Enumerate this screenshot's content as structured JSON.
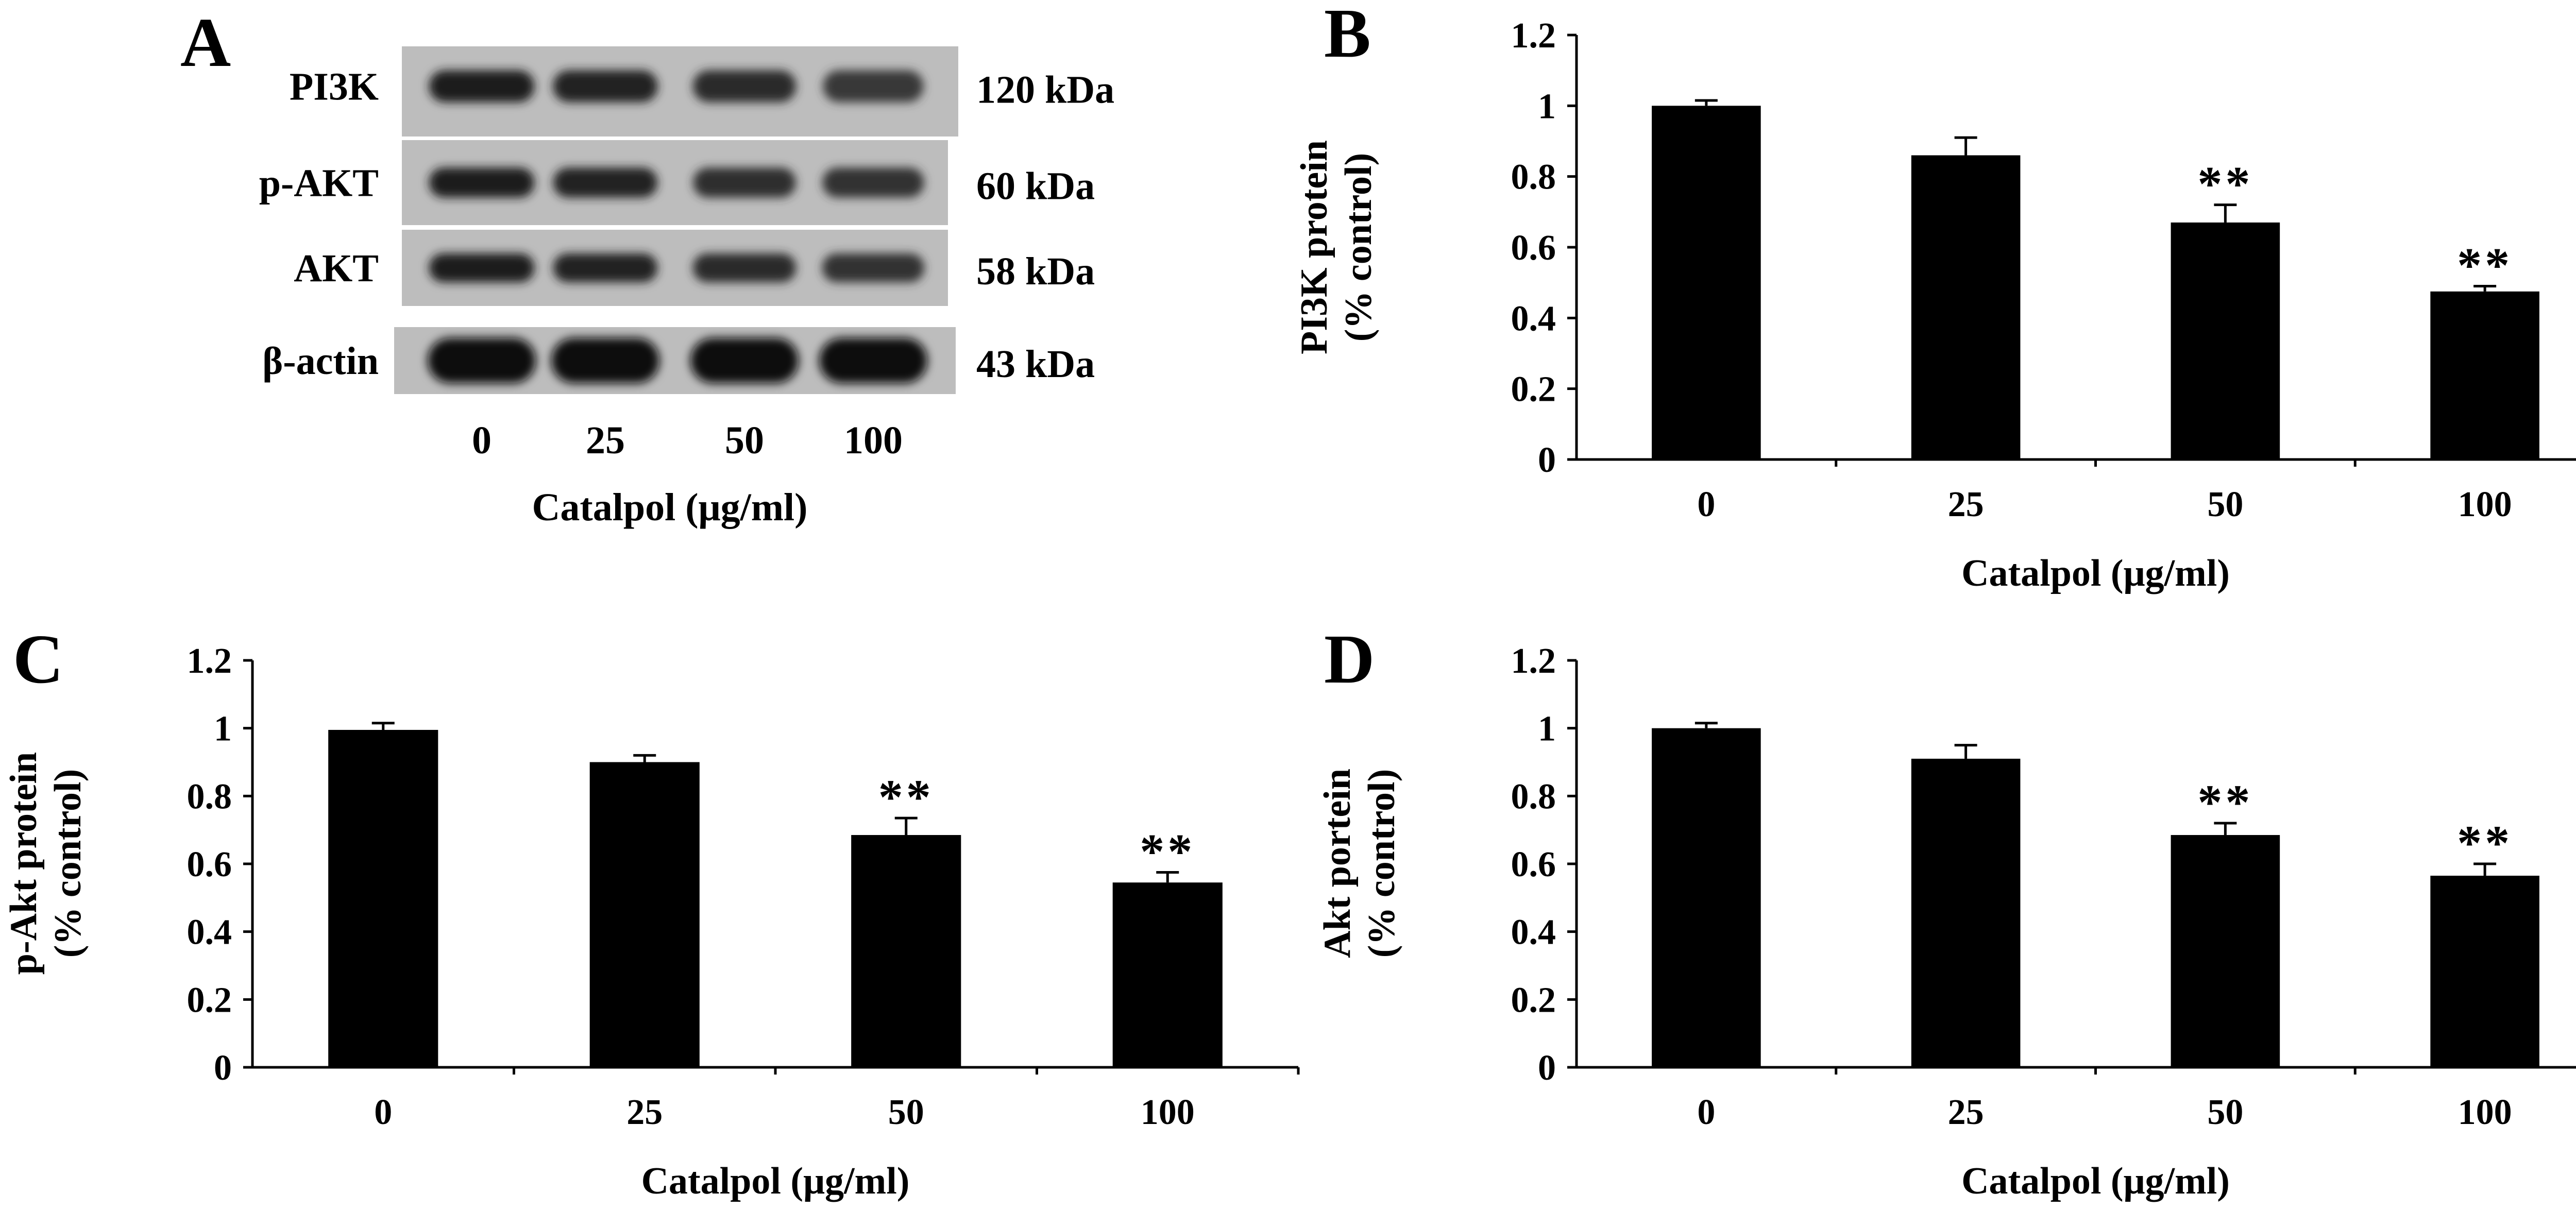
{
  "figure": {
    "blot": {
      "panel_letter": "A",
      "rows": [
        {
          "protein": "PI3K",
          "size": "120 kDa",
          "band_intensity": [
            0.9,
            0.88,
            0.82,
            0.72
          ]
        },
        {
          "protein": "p-AKT",
          "size": "60 kDa",
          "band_intensity": [
            0.9,
            0.86,
            0.8,
            0.76
          ]
        },
        {
          "protein": "AKT",
          "size": "58 kDa",
          "band_intensity": [
            0.9,
            0.86,
            0.82,
            0.78
          ]
        },
        {
          "protein": "β-actin",
          "size": "43 kDa",
          "band_intensity": [
            1.0,
            1.0,
            1.0,
            1.0
          ]
        }
      ],
      "lanes": [
        "0",
        "25",
        "50",
        "100"
      ],
      "xlabel": "Catalpol (μg/ml)"
    }
  },
  "chart_data": [
    {
      "panel_letter": "B",
      "type": "bar",
      "title": "",
      "categories": [
        "0",
        "25",
        "50",
        "100"
      ],
      "values": [
        1.0,
        0.86,
        0.67,
        0.475
      ],
      "errors": [
        0.015,
        0.05,
        0.05,
        0.015
      ],
      "significance": [
        "",
        "",
        "**",
        "**"
      ],
      "xlabel": "Catalpol (μg/ml)",
      "ylabel_line1": "PI3K protein",
      "ylabel_line2": "(% control)",
      "ylim": [
        0,
        1.2
      ],
      "yticks": [
        "0",
        "0.2",
        "0.4",
        "0.6",
        "0.8",
        "1",
        "1.2"
      ],
      "bar_color": "#000000",
      "grid": false
    },
    {
      "panel_letter": "C",
      "type": "bar",
      "title": "",
      "categories": [
        "0",
        "25",
        "50",
        "100"
      ],
      "values": [
        0.995,
        0.9,
        0.685,
        0.545
      ],
      "errors": [
        0.02,
        0.02,
        0.05,
        0.03
      ],
      "significance": [
        "",
        "",
        "**",
        "**"
      ],
      "xlabel": "Catalpol (μg/ml)",
      "ylabel_line1": "p-Akt protein",
      "ylabel_line2": "(% control)",
      "ylim": [
        0,
        1.2
      ],
      "yticks": [
        "0",
        "0.2",
        "0.4",
        "0.6",
        "0.8",
        "1",
        "1.2"
      ],
      "bar_color": "#000000",
      "grid": false
    },
    {
      "panel_letter": "D",
      "type": "bar",
      "title": "",
      "categories": [
        "0",
        "25",
        "50",
        "100"
      ],
      "values": [
        1.0,
        0.91,
        0.685,
        0.565
      ],
      "errors": [
        0.015,
        0.04,
        0.035,
        0.035
      ],
      "significance": [
        "",
        "",
        "**",
        "**"
      ],
      "xlabel": "Catalpol (μg/ml)",
      "ylabel_line1": "Akt portein",
      "ylabel_line2": "(% control)",
      "ylim": [
        0,
        1.2
      ],
      "yticks": [
        "0",
        "0.2",
        "0.4",
        "0.6",
        "0.8",
        "1",
        "1.2"
      ],
      "bar_color": "#000000",
      "grid": false
    }
  ]
}
